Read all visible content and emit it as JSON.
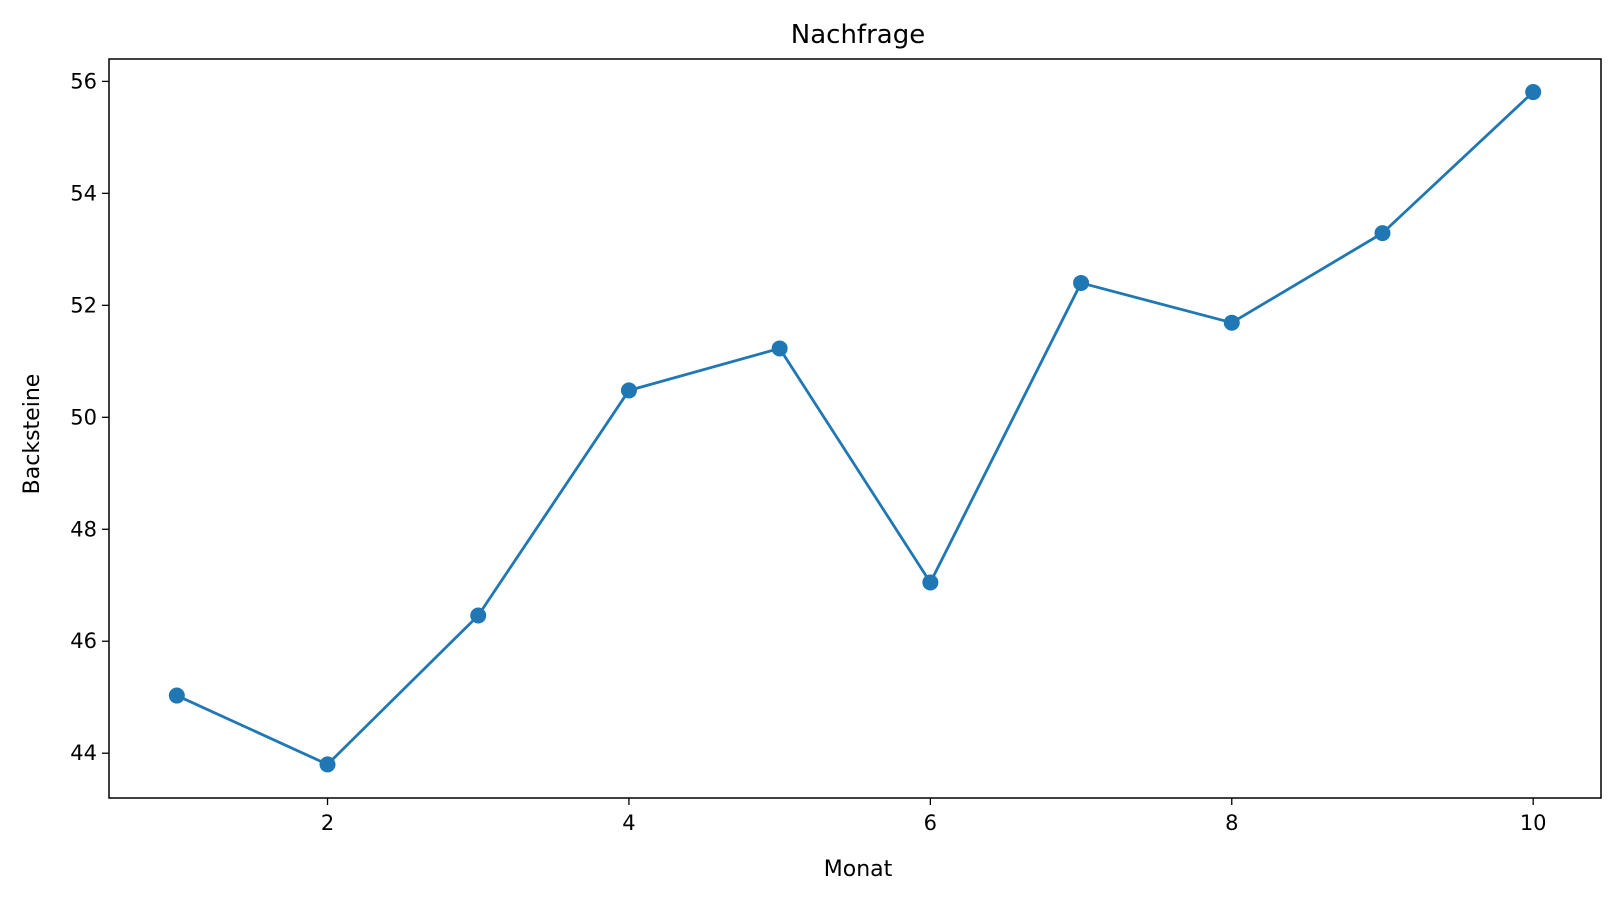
{
  "chart_data": {
    "type": "line",
    "title": "Nachfrage",
    "xlabel": "Monat",
    "ylabel": "Backsteine",
    "x": [
      1,
      2,
      3,
      4,
      5,
      6,
      7,
      8,
      9,
      10
    ],
    "series": [
      {
        "values": [
          45.03,
          43.8,
          46.46,
          50.48,
          51.23,
          47.05,
          52.4,
          51.69,
          53.29,
          55.81
        ]
      }
    ],
    "xlim": [
      0.55,
      10.45
    ],
    "ylim": [
      43.2,
      56.4
    ],
    "xticks": [
      2,
      4,
      6,
      8,
      10
    ],
    "yticks": [
      44,
      46,
      48,
      50,
      52,
      54,
      56
    ],
    "grid": false,
    "color": "#1f77b4"
  }
}
